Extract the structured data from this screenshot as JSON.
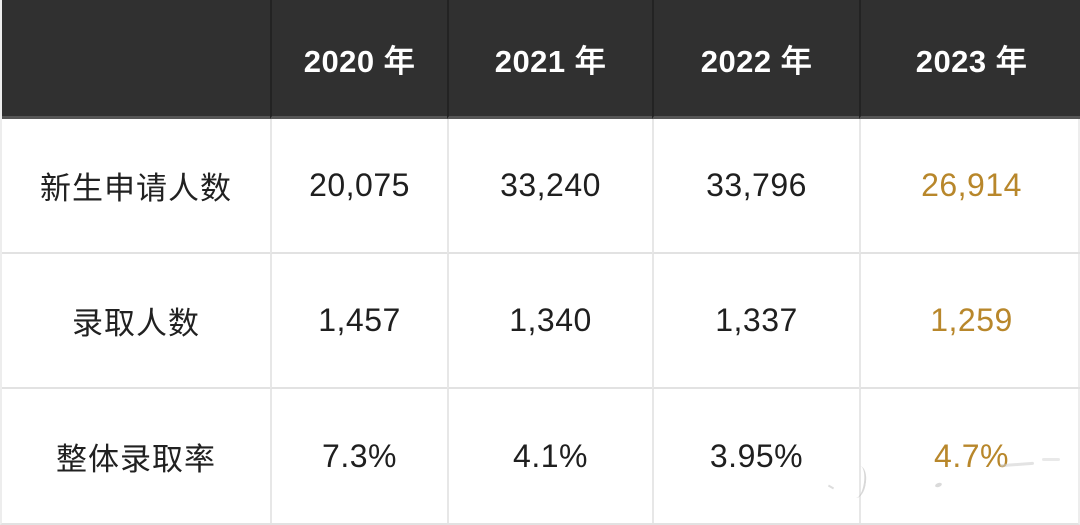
{
  "table": {
    "header": {
      "corner": "",
      "columns": [
        "2020 年",
        "2021 年",
        "2022 年",
        "2023 年"
      ]
    },
    "rows": [
      {
        "label": "新生申请人数",
        "values": [
          "20,075",
          "33,240",
          "33,796",
          "26,914"
        ]
      },
      {
        "label": "录取人数",
        "values": [
          "1,457",
          "1,340",
          "1,337",
          "1,259"
        ]
      },
      {
        "label": "整体录取率",
        "values": [
          "7.3%",
          "4.1%",
          "3.95%",
          "4.7%"
        ]
      }
    ],
    "highlighted_column": "2023 年"
  },
  "colors": {
    "header_bg": "#303030",
    "header_text": "#ffffff",
    "body_text": "#1f1f1f",
    "highlight_text": "#B8872B",
    "grid_line": "#e2e2e2"
  },
  "chart_data": {
    "type": "table",
    "categories": [
      "2020",
      "2021",
      "2022",
      "2023"
    ],
    "series": [
      {
        "name": "新生申请人数",
        "values": [
          20075,
          33240,
          33796,
          26914
        ]
      },
      {
        "name": "录取人数",
        "values": [
          1457,
          1340,
          1337,
          1259
        ]
      },
      {
        "name": "整体录取率",
        "values": [
          "7.3%",
          "4.1%",
          "3.95%",
          "4.7%"
        ]
      }
    ],
    "title": "",
    "legend_position": "none",
    "notes": "2023 column values rendered in gold highlight color"
  }
}
